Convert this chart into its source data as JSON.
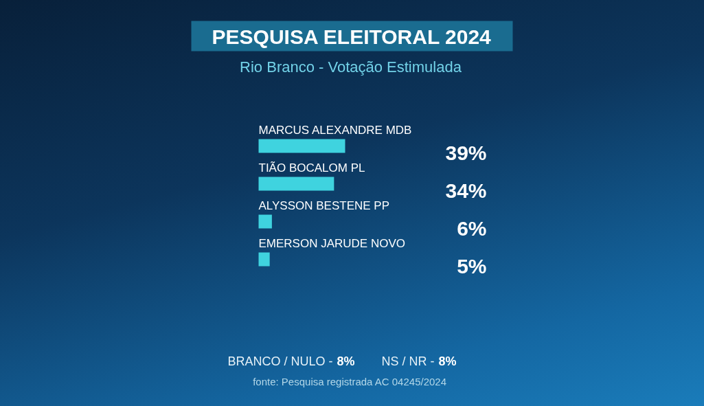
{
  "chart_data": {
    "type": "bar",
    "orientation": "horizontal",
    "title": "PESQUISA ELEITORAL 2024",
    "subtitle": "Rio Branco - Votação Estimulada",
    "categories": [
      "MARCUS ALEXANDRE MDB",
      "TIÃO BOCALOM PL",
      "ALYSSON BESTENE PP",
      "EMERSON JARUDE NOVO"
    ],
    "values": [
      39,
      34,
      6,
      5
    ],
    "value_labels": [
      "39%",
      "34%",
      "6%",
      "5%"
    ],
    "color": "#3fd3df",
    "annotations": [
      "BRANCO / NULO - 8%",
      "NS / NR - 8%",
      "fonte: Pesquisa registrada AC 04245/2024"
    ]
  }
}
